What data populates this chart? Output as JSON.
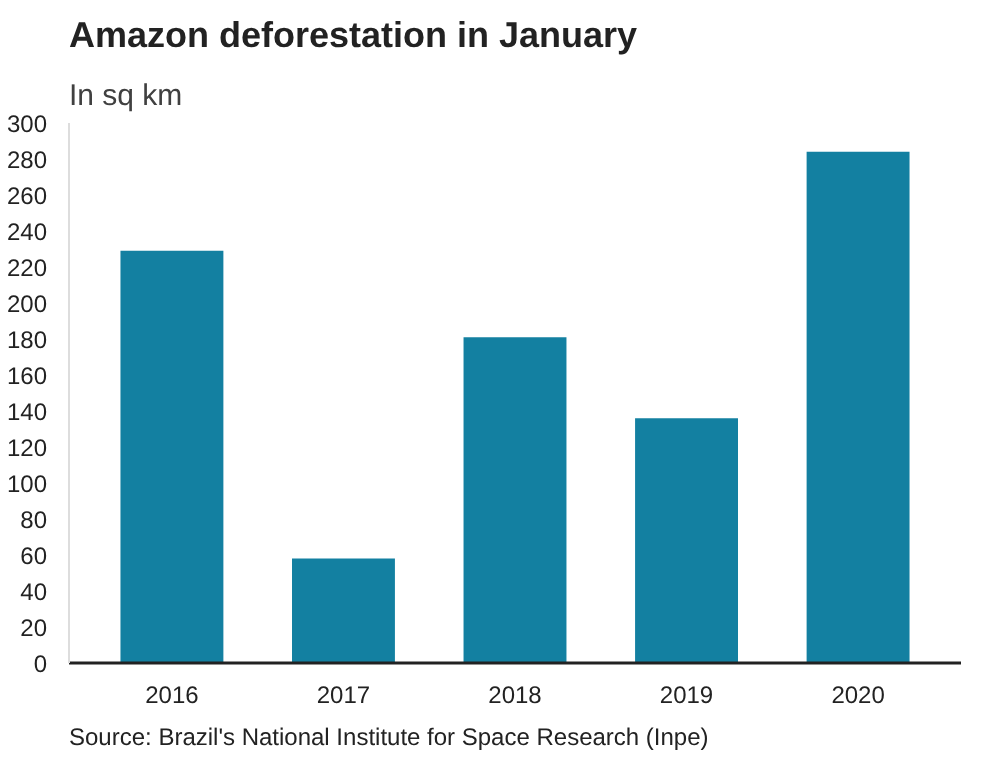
{
  "chart_data": {
    "type": "bar",
    "title": "Amazon deforestation in January",
    "subtitle": "In sq km",
    "categories": [
      "2016",
      "2017",
      "2018",
      "2019",
      "2020"
    ],
    "values": [
      229,
      58,
      181,
      136,
      284
    ],
    "color": "#1380a1",
    "ylim": [
      0,
      300
    ],
    "yticks": [
      0,
      20,
      40,
      60,
      80,
      100,
      120,
      140,
      160,
      180,
      200,
      220,
      240,
      260,
      280,
      300
    ],
    "grid": false,
    "annotations": [
      "Source: Brazil's National Institute for Space Research (Inpe)"
    ]
  }
}
